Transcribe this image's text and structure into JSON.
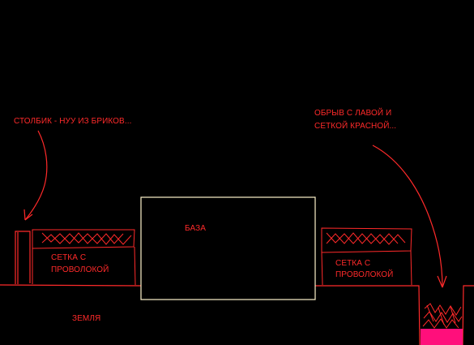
{
  "labels": {
    "pillar_note": "СТОЛБИК - НУУ ИЗ БРИКОВ...",
    "cliff_note_line1": "ОБРЫВ С ЛАВОЙ И",
    "cliff_note_line2": "СЕТКОЙ КРАСНОЙ...",
    "base": "БАЗА",
    "mesh_left_line1": "СЕТКА С",
    "mesh_left_line2": "ПРОВОЛОКОЙ",
    "mesh_right_line1": "СЕТКА С",
    "mesh_right_line2": "ПРОВОЛОКОЙ",
    "ground": "ЗЕМЛЯ"
  },
  "colors": {
    "background": "#000000",
    "sketch_red": "#ff2a2a",
    "base_outline": "#fff4cc",
    "lava": "#ff0f7b"
  }
}
